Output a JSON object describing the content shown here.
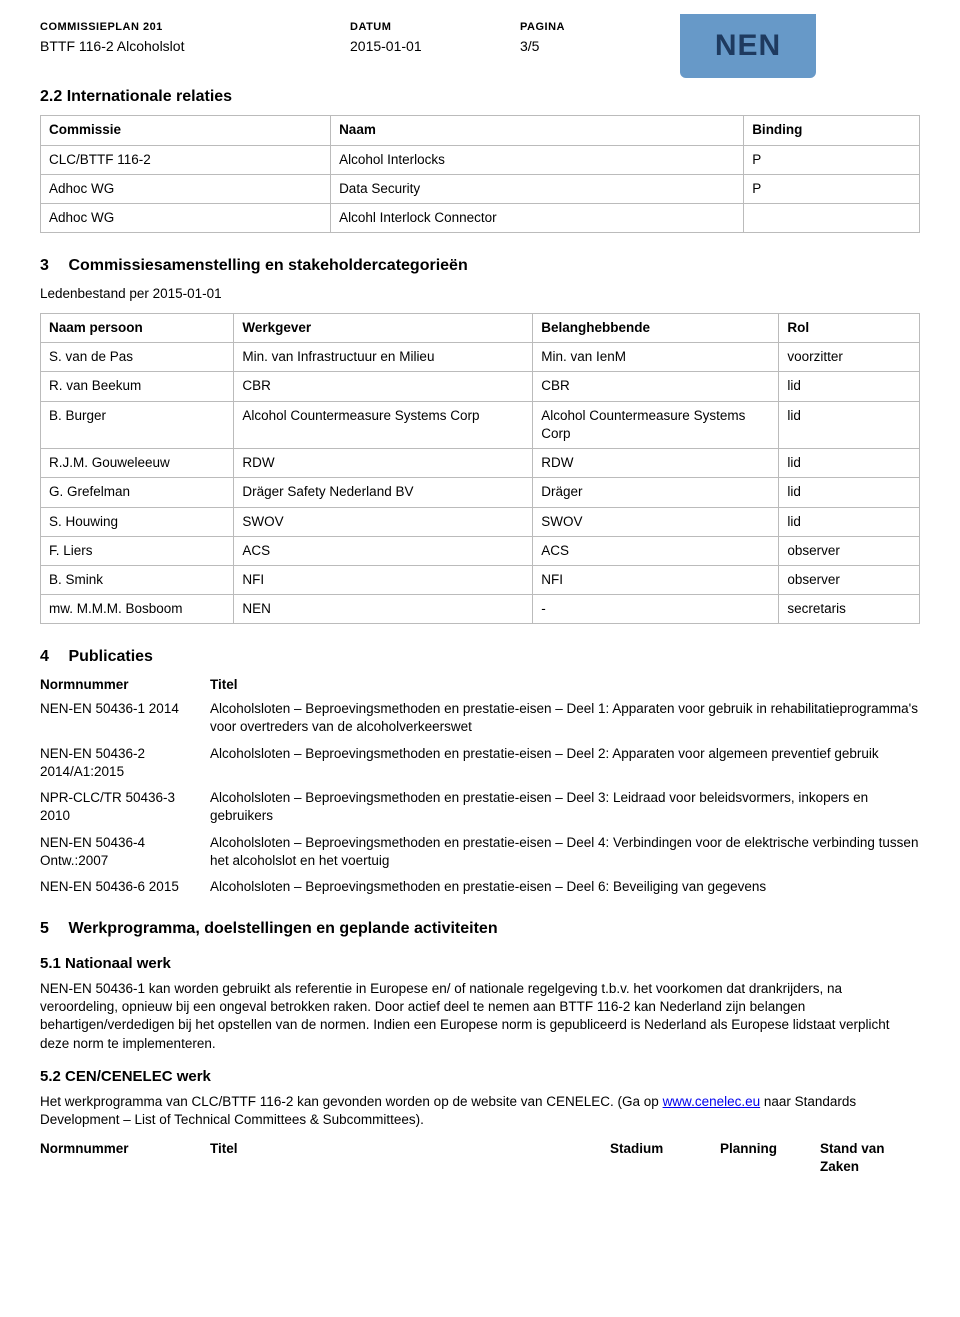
{
  "header": {
    "labels": {
      "plan": "COMMISSIEPLAN 201",
      "datum": "DATUM",
      "pagina": "PAGINA"
    },
    "values": {
      "plan": "BTTF 116-2 Alcoholslot",
      "datum": "2015-01-01",
      "pagina": "3/5"
    }
  },
  "logo": {
    "text": "NEN",
    "bg": "#6799C8",
    "fg": "#1E3A5F"
  },
  "s22": {
    "title": "2.2 Internationale relaties",
    "cols": [
      "Commissie",
      "Naam",
      "Binding"
    ],
    "rows": [
      [
        "CLC/BTTF 116-2",
        "Alcohol Interlocks",
        "P"
      ],
      [
        "Adhoc WG",
        "Data Security",
        "P"
      ],
      [
        "Adhoc WG",
        "Alcohl Interlock Connector",
        ""
      ]
    ]
  },
  "s3": {
    "title": "Commissiesamenstelling en stakeholdercategorieën",
    "num": "3",
    "leden": "Ledenbestand per 2015-01-01",
    "cols": [
      "Naam persoon",
      "Werkgever",
      "Belanghebbende",
      "Rol"
    ],
    "rows": [
      [
        "S. van de Pas",
        "Min. van Infrastructuur en Milieu",
        "Min. van IenM",
        "voorzitter"
      ],
      [
        "R. van Beekum",
        "CBR",
        "CBR",
        "lid"
      ],
      [
        "B. Burger",
        "Alcohol Countermeasure Systems Corp",
        "Alcohol Countermeasure Systems Corp",
        "lid"
      ],
      [
        "R.J.M. Gouweleeuw",
        "RDW",
        "RDW",
        "lid"
      ],
      [
        "G. Grefelman",
        "Dräger Safety Nederland BV",
        "Dräger",
        "lid"
      ],
      [
        "S. Houwing",
        "SWOV",
        "SWOV",
        "lid"
      ],
      [
        "F. Liers",
        "ACS",
        "ACS",
        "observer"
      ],
      [
        "B. Smink",
        "NFI",
        "NFI",
        "observer"
      ],
      [
        "mw. M.M.M. Bosboom",
        "NEN",
        "-",
        "secretaris"
      ]
    ]
  },
  "s4": {
    "title": "Publicaties",
    "num": "4",
    "hdr_num": "Normnummer",
    "hdr_title": "Titel",
    "items": [
      {
        "num": "NEN-EN 50436-1 2014",
        "title": "Alcoholsloten – Beproevingsmethoden en prestatie-eisen – Deel 1: Apparaten voor gebruik in rehabilitatieprogramma's voor overtreders van de alcoholverkeerswet"
      },
      {
        "num": "NEN-EN 50436-2 2014/A1:2015",
        "title": "Alcoholsloten – Beproevingsmethoden en prestatie-eisen – Deel 2: Apparaten voor algemeen preventief gebruik"
      },
      {
        "num": "NPR-CLC/TR 50436-3 2010",
        "title": "Alcoholsloten – Beproevingsmethoden en prestatie-eisen – Deel 3: Leidraad voor beleidsvormers, inkopers en gebruikers"
      },
      {
        "num": "NEN-EN 50436-4 Ontw.:2007",
        "title": "Alcoholsloten – Beproevingsmethoden en prestatie-eisen – Deel 4: Verbindingen voor de elektrische verbinding tussen het alcoholslot en het voertuig"
      },
      {
        "num": "NEN-EN 50436-6 2015",
        "title": "Alcoholsloten – Beproevingsmethoden en prestatie-eisen – Deel 6: Beveiliging van gegevens"
      }
    ]
  },
  "s5": {
    "num": "5",
    "title": "Werkprogramma, doelstellingen en geplande activiteiten",
    "s51": {
      "title": "5.1 Nationaal werk",
      "body": "NEN-EN 50436-1 kan worden gebruikt als referentie in Europese en/ of nationale regelgeving t.b.v. het voorkomen dat drankrijders, na veroordeling, opnieuw bij een ongeval betrokken raken. Door actief deel te nemen aan BTTF 116-2 kan Nederland zijn belangen behartigen/verdedigen bij het opstellen van de normen. Indien een Europese norm is gepubliceerd is Nederland als Europese lidstaat verplicht deze norm te implementeren."
    },
    "s52": {
      "title": "5.2 CEN/CENELEC werk",
      "pre": "Het werkprogramma van CLC/BTTF 116-2 kan gevonden worden op de website van CENELEC. (Ga op ",
      "link": "www.cenelec.eu",
      "post": " naar Standards Development – List of Technical Committees & Subcommittees)."
    },
    "footcols": [
      "Normnummer",
      "Titel",
      "Stadium",
      "Planning",
      "Stand van Zaken"
    ]
  }
}
